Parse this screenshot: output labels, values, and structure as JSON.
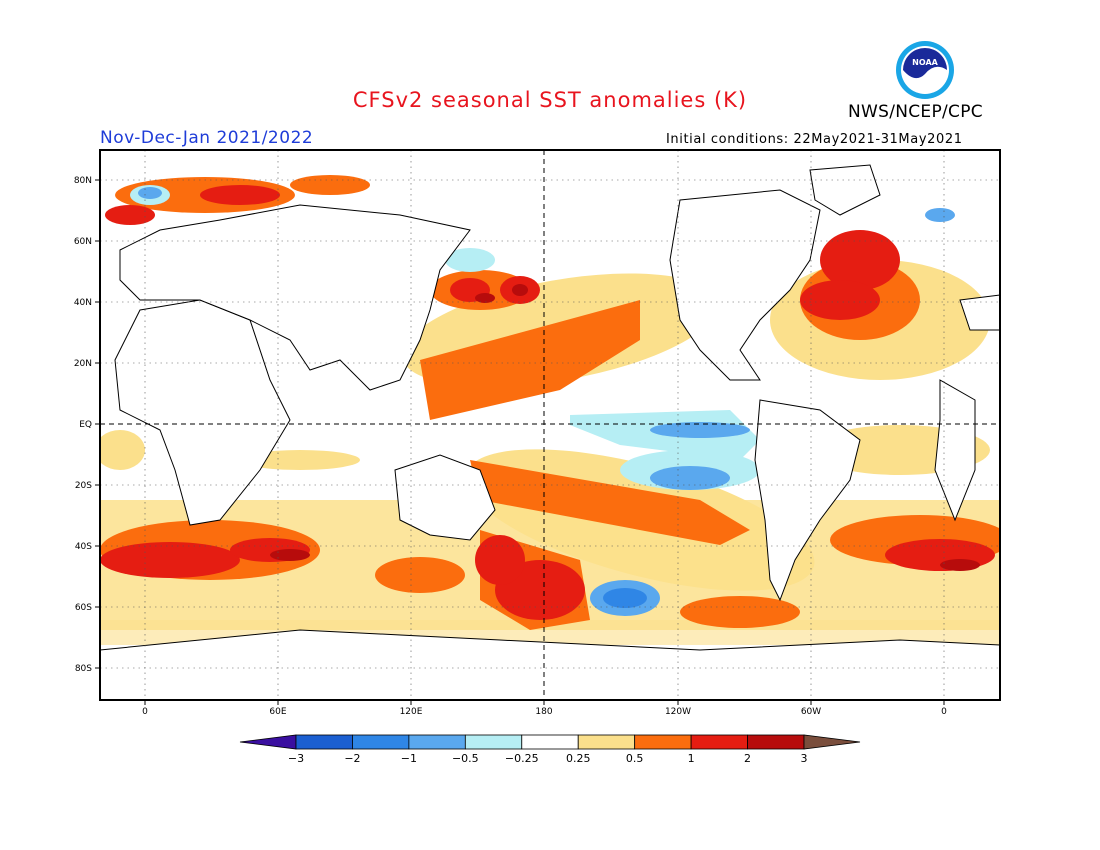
{
  "header": {
    "title": "CFSv2 seasonal SST anomalies (K)",
    "period": "Nov-Dec-Jan 2021/2022",
    "initial_conditions": "Initial conditions: 22May2021-31May2021",
    "organization": "NWS/NCEP/CPC",
    "logo_text": "NOAA"
  },
  "colors": {
    "title": "#e8141e",
    "period": "#1e3cd8",
    "ocean_neutral": "#ffffff",
    "land": "#ffffff"
  },
  "map": {
    "lat_labels": [
      "80N",
      "60N",
      "40N",
      "20N",
      "EQ",
      "20S",
      "40S",
      "60S",
      "80S"
    ],
    "lon_labels": [
      "0",
      "60E",
      "120E",
      "180",
      "120W",
      "60W",
      "0"
    ]
  },
  "colorbar": {
    "labels": [
      "-3",
      "-2",
      "-1",
      "-0.5",
      "-0.25",
      "0.25",
      "0.5",
      "1",
      "2",
      "3"
    ],
    "colors": [
      "#3a0fa0",
      "#1b5fd1",
      "#2f86e6",
      "#5aa8ee",
      "#b6eef4",
      "#ffffff",
      "#fbe08c",
      "#fb6d0e",
      "#e51d12",
      "#b70c0c",
      "#7a4e3c"
    ]
  }
}
